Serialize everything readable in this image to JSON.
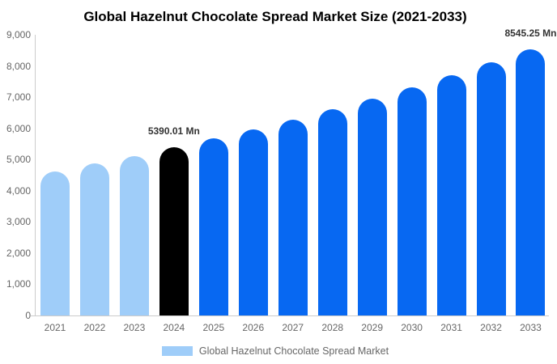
{
  "chart_data": {
    "type": "bar",
    "title": "Global Hazelnut Chocolate Spread Market Size (2021-2033)",
    "categories": [
      "2021",
      "2022",
      "2023",
      "2024",
      "2025",
      "2026",
      "2027",
      "2028",
      "2029",
      "2030",
      "2031",
      "2032",
      "2033"
    ],
    "values": [
      4623,
      4866,
      5121,
      5390.01,
      5673,
      5971,
      6284,
      6614,
      6961,
      7327,
      7712,
      8117,
      8545.25
    ],
    "color_roles": [
      "historical",
      "historical",
      "historical",
      "base_year",
      "forecast",
      "forecast",
      "forecast",
      "forecast",
      "forecast",
      "forecast",
      "forecast",
      "forecast",
      "forecast"
    ],
    "colors": {
      "historical": "#9FCDF9",
      "base_year": "#000000",
      "forecast": "#0768F2"
    },
    "ylim": [
      0,
      9000
    ],
    "y_ticks": [
      {
        "value": 0,
        "label": "0"
      },
      {
        "value": 1000,
        "label": "1,000"
      },
      {
        "value": 2000,
        "label": "2,000"
      },
      {
        "value": 3000,
        "label": "3,000"
      },
      {
        "value": 4000,
        "label": "4,000"
      },
      {
        "value": 5000,
        "label": "5,000"
      },
      {
        "value": 6000,
        "label": "6,000"
      },
      {
        "value": 7000,
        "label": "7,000"
      },
      {
        "value": 8000,
        "label": "8,000"
      },
      {
        "value": 9000,
        "label": "9,000"
      }
    ],
    "grid": false,
    "legend_position": "bottom",
    "axis_color": "#CCCCCC",
    "tick_label_color": "#666666",
    "annotation_color": "#333333",
    "annotations": [
      {
        "category": "2024",
        "text": "5390.01 Mn"
      },
      {
        "category": "2033",
        "text": "8545.25 Mn"
      }
    ],
    "legend": {
      "label": "Global Hazelnut Chocolate Spread Market",
      "swatch_color": "#9FCDF9"
    }
  }
}
